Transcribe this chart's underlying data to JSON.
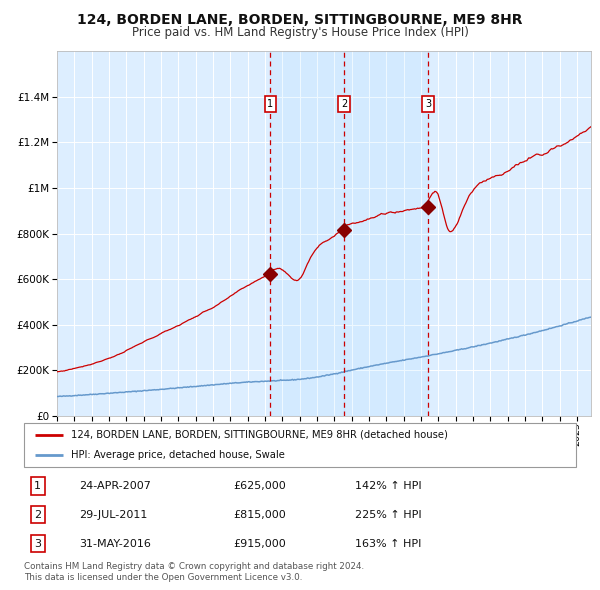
{
  "title": "124, BORDEN LANE, BORDEN, SITTINGBOURNE, ME9 8HR",
  "subtitle": "Price paid vs. HM Land Registry's House Price Index (HPI)",
  "legend_line1": "124, BORDEN LANE, BORDEN, SITTINGBOURNE, ME9 8HR (detached house)",
  "legend_line2": "HPI: Average price, detached house, Swale",
  "footer_line1": "Contains HM Land Registry data © Crown copyright and database right 2024.",
  "footer_line2": "This data is licensed under the Open Government Licence v3.0.",
  "sale_events": [
    {
      "num": 1,
      "date": "24-APR-2007",
      "price": "£625,000",
      "hpi": "142% ↑ HPI"
    },
    {
      "num": 2,
      "date": "29-JUL-2011",
      "price": "£815,000",
      "hpi": "225% ↑ HPI"
    },
    {
      "num": 3,
      "date": "31-MAY-2016",
      "price": "£915,000",
      "hpi": "163% ↑ HPI"
    }
  ],
  "sale_dates_decimal": [
    2007.31,
    2011.57,
    2016.41
  ],
  "sale_prices": [
    625000,
    815000,
    915000
  ],
  "hpi_color": "#6699cc",
  "price_color": "#cc0000",
  "marker_color": "#880000",
  "bg_color": "#ddeeff",
  "grid_color": "#ffffff",
  "dashed_color": "#cc0000",
  "ylim": [
    0,
    1600000
  ],
  "yticks": [
    0,
    200000,
    400000,
    600000,
    800000,
    1000000,
    1200000,
    1400000
  ],
  "xlim_start": 1995.0,
  "xlim_end": 2025.8,
  "title_fontsize": 10,
  "subtitle_fontsize": 8.5,
  "label_fontsize": 7
}
